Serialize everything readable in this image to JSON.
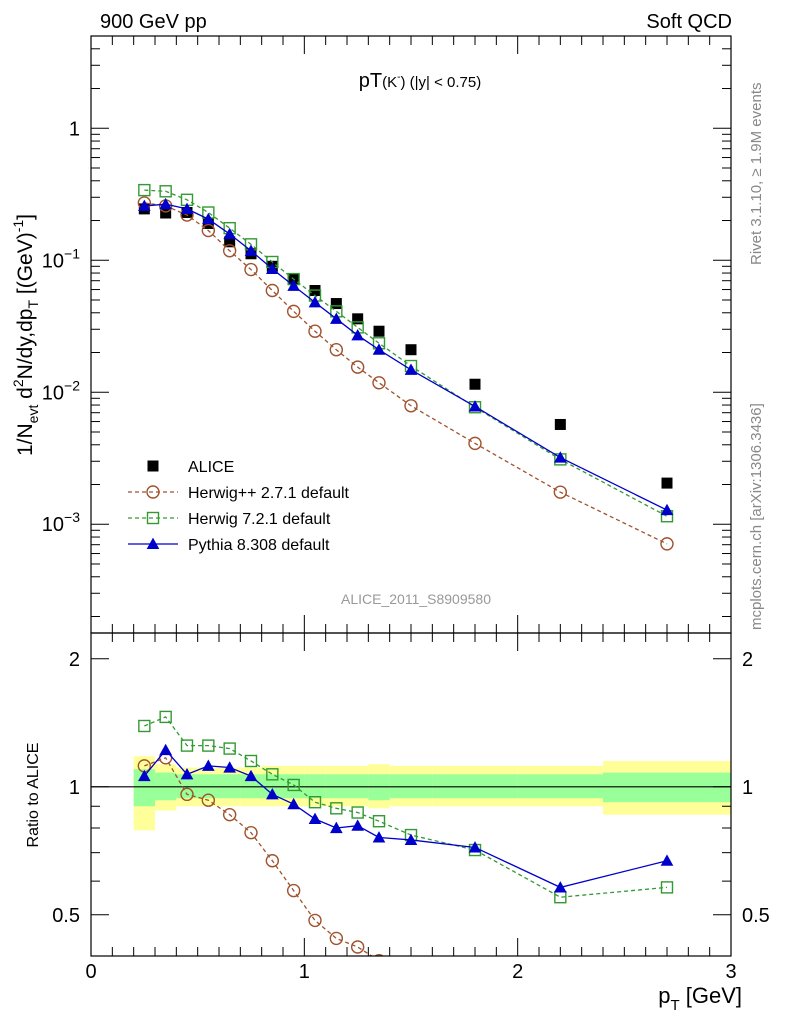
{
  "header": {
    "left": "900 GeV pp",
    "right": "Soft QCD"
  },
  "side_text": {
    "rivet": "Rivet 3.1.10, ≥ 1.9M events",
    "mcplots": "mcplots.cern.ch [arXiv:1306.3436]"
  },
  "analysis_label": "ALICE_2011_S8909580",
  "chart_data": [
    {
      "type": "scatter",
      "panel": "main",
      "title_main": "pT",
      "title_paren": "(K",
      "title_sup": "-",
      "title_tail": ") (|y| < 0.75)",
      "ylabel": "1/N_evt d²N/dy,dp_T [(GeV)⁻¹]",
      "ylabel_parts": {
        "a": "1/N",
        "a_sub": "evt",
        "b": " d",
        "b_sup": "2",
        "c": "N/dy,dp",
        "c_sub": "T",
        "d": " [(GeV)",
        "d_sup": "-1",
        "e": "]"
      },
      "yscale": "log",
      "ylim": [
        0.00015,
        5.0
      ],
      "xlim": [
        0,
        3
      ],
      "ytick_labels": {
        "1": {
          "base": "1",
          "exp": ""
        },
        "0.1": {
          "base": "10",
          "exp": "−1"
        },
        "0.01": {
          "base": "10",
          "exp": "−2"
        },
        "0.001": {
          "base": "10",
          "exp": "−3"
        }
      },
      "legend_position": "lower-left",
      "series": [
        {
          "name": "ALICE",
          "color": "#000000",
          "marker": "filled-square",
          "line": "none",
          "x": [
            0.25,
            0.35,
            0.45,
            0.55,
            0.65,
            0.75,
            0.85,
            0.95,
            1.05,
            1.15,
            1.25,
            1.35,
            1.5,
            1.8,
            2.2,
            2.7
          ],
          "y": [
            0.245,
            0.228,
            0.23,
            0.19,
            0.138,
            0.112,
            0.09,
            0.072,
            0.059,
            0.047,
            0.036,
            0.029,
            0.021,
            0.0115,
            0.0057,
            0.00205
          ]
        },
        {
          "name": "Herwig++ 2.7.1 default",
          "color": "#a0522d",
          "marker": "open-circle",
          "line": "dashed",
          "x": [
            0.25,
            0.35,
            0.45,
            0.55,
            0.65,
            0.75,
            0.85,
            0.95,
            1.05,
            1.15,
            1.25,
            1.35,
            1.5,
            1.8,
            2.2,
            2.7
          ],
          "y": [
            0.272,
            0.258,
            0.22,
            0.168,
            0.118,
            0.085,
            0.059,
            0.041,
            0.029,
            0.021,
            0.0155,
            0.0118,
            0.0079,
            0.0041,
            0.00175,
            0.00071
          ]
        },
        {
          "name": "Herwig 7.2.1 default",
          "color": "#339933",
          "marker": "open-square",
          "line": "dashed",
          "x": [
            0.25,
            0.35,
            0.45,
            0.55,
            0.65,
            0.75,
            0.85,
            0.95,
            1.05,
            1.15,
            1.25,
            1.35,
            1.5,
            1.8,
            2.2,
            2.7
          ],
          "y": [
            0.34,
            0.333,
            0.287,
            0.23,
            0.175,
            0.132,
            0.097,
            0.072,
            0.054,
            0.041,
            0.031,
            0.0235,
            0.0158,
            0.0077,
            0.0031,
            0.00115
          ]
        },
        {
          "name": "Pythia 8.308 default",
          "color": "#0000cc",
          "marker": "filled-triangle",
          "line": "solid",
          "x": [
            0.25,
            0.35,
            0.45,
            0.55,
            0.65,
            0.75,
            0.85,
            0.95,
            1.05,
            1.15,
            1.25,
            1.35,
            1.5,
            1.8,
            2.2,
            2.7
          ],
          "y": [
            0.258,
            0.266,
            0.245,
            0.205,
            0.158,
            0.118,
            0.086,
            0.064,
            0.048,
            0.036,
            0.027,
            0.021,
            0.0148,
            0.0078,
            0.0032,
            0.00128
          ]
        }
      ]
    },
    {
      "type": "scatter",
      "panel": "ratio",
      "ylabel": "Ratio to ALICE",
      "xlabel_base": "p",
      "xlabel_sub": "T",
      "xlabel_unit": " [GeV]",
      "yscale": "log",
      "ylim": [
        0.4,
        2.3
      ],
      "xlim": [
        0,
        3
      ],
      "yticks": [
        0.5,
        1,
        2
      ],
      "ytick_labels": [
        "0.5",
        "1",
        "2"
      ],
      "xticks": [
        0,
        1,
        2,
        3
      ],
      "xtick_labels": [
        "0",
        "1",
        "2",
        "3"
      ],
      "uncertainty_bins": [
        {
          "x0": 0.2,
          "x1": 0.3,
          "stat_lo": 0.9,
          "stat_hi": 1.1,
          "tot_lo": 0.79,
          "tot_hi": 1.18
        },
        {
          "x0": 0.3,
          "x1": 0.4,
          "stat_lo": 0.93,
          "stat_hi": 1.08,
          "tot_lo": 0.88,
          "tot_hi": 1.13
        },
        {
          "x0": 0.4,
          "x1": 0.5,
          "stat_lo": 0.94,
          "stat_hi": 1.07,
          "tot_lo": 0.9,
          "tot_hi": 1.11
        },
        {
          "x0": 0.5,
          "x1": 0.6,
          "stat_lo": 0.94,
          "stat_hi": 1.07,
          "tot_lo": 0.9,
          "tot_hi": 1.11
        },
        {
          "x0": 0.6,
          "x1": 0.7,
          "stat_lo": 0.94,
          "stat_hi": 1.07,
          "tot_lo": 0.9,
          "tot_hi": 1.11
        },
        {
          "x0": 0.7,
          "x1": 0.8,
          "stat_lo": 0.94,
          "stat_hi": 1.07,
          "tot_lo": 0.9,
          "tot_hi": 1.11
        },
        {
          "x0": 0.8,
          "x1": 0.9,
          "stat_lo": 0.94,
          "stat_hi": 1.07,
          "tot_lo": 0.9,
          "tot_hi": 1.12
        },
        {
          "x0": 0.9,
          "x1": 1.0,
          "stat_lo": 0.94,
          "stat_hi": 1.07,
          "tot_lo": 0.9,
          "tot_hi": 1.12
        },
        {
          "x0": 1.0,
          "x1": 1.1,
          "stat_lo": 0.94,
          "stat_hi": 1.07,
          "tot_lo": 0.9,
          "tot_hi": 1.12
        },
        {
          "x0": 1.1,
          "x1": 1.2,
          "stat_lo": 0.94,
          "stat_hi": 1.07,
          "tot_lo": 0.9,
          "tot_hi": 1.12
        },
        {
          "x0": 1.2,
          "x1": 1.3,
          "stat_lo": 0.94,
          "stat_hi": 1.07,
          "tot_lo": 0.9,
          "tot_hi": 1.12
        },
        {
          "x0": 1.3,
          "x1": 1.4,
          "stat_lo": 0.93,
          "stat_hi": 1.07,
          "tot_lo": 0.89,
          "tot_hi": 1.13
        },
        {
          "x0": 1.4,
          "x1": 1.6,
          "stat_lo": 0.94,
          "stat_hi": 1.07,
          "tot_lo": 0.9,
          "tot_hi": 1.12
        },
        {
          "x0": 1.6,
          "x1": 2.0,
          "stat_lo": 0.94,
          "stat_hi": 1.07,
          "tot_lo": 0.9,
          "tot_hi": 1.12
        },
        {
          "x0": 2.0,
          "x1": 2.4,
          "stat_lo": 0.94,
          "stat_hi": 1.07,
          "tot_lo": 0.9,
          "tot_hi": 1.12
        },
        {
          "x0": 2.4,
          "x1": 3.0,
          "stat_lo": 0.92,
          "stat_hi": 1.08,
          "tot_lo": 0.86,
          "tot_hi": 1.15
        }
      ],
      "stat_band_color": "#99ff99",
      "total_band_color": "#ffff99",
      "series": [
        {
          "name": "Herwig++ 2.7.1 default",
          "color": "#a0522d",
          "marker": "open-circle",
          "line": "dashed",
          "x": [
            0.25,
            0.35,
            0.45,
            0.55,
            0.65,
            0.75,
            0.85,
            0.95,
            1.05,
            1.15,
            1.25,
            1.35
          ],
          "y": [
            1.12,
            1.17,
            0.96,
            0.93,
            0.86,
            0.78,
            0.67,
            0.57,
            0.485,
            0.44,
            0.42,
            0.39
          ]
        },
        {
          "name": "Herwig 7.2.1 default",
          "color": "#339933",
          "marker": "open-square",
          "line": "dashed",
          "x": [
            0.25,
            0.35,
            0.45,
            0.55,
            0.65,
            0.75,
            0.85,
            0.95,
            1.05,
            1.15,
            1.25,
            1.35,
            1.5,
            1.8,
            2.2,
            2.7
          ],
          "y": [
            1.39,
            1.46,
            1.25,
            1.25,
            1.23,
            1.15,
            1.07,
            1.01,
            0.92,
            0.89,
            0.87,
            0.83,
            0.77,
            0.71,
            0.55,
            0.58
          ]
        },
        {
          "name": "Pythia 8.308 default",
          "color": "#0000cc",
          "marker": "filled-triangle",
          "line": "solid",
          "x": [
            0.25,
            0.35,
            0.45,
            0.55,
            0.65,
            0.75,
            0.85,
            0.95,
            1.05,
            1.15,
            1.25,
            1.35,
            1.5,
            1.8,
            2.2,
            2.7
          ],
          "y": [
            1.06,
            1.22,
            1.07,
            1.12,
            1.11,
            1.06,
            0.96,
            0.91,
            0.84,
            0.8,
            0.81,
            0.76,
            0.75,
            0.72,
            0.58,
            0.67
          ]
        }
      ]
    }
  ]
}
